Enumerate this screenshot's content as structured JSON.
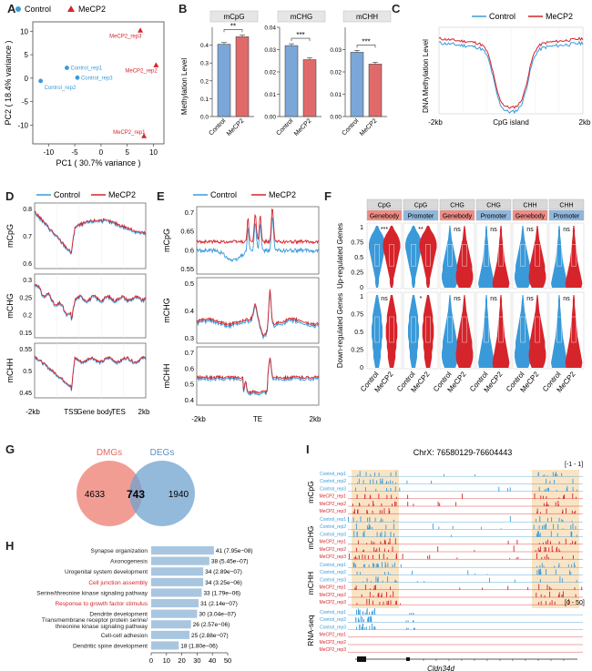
{
  "labels": {
    "A": "A",
    "B": "B",
    "C": "C",
    "D": "D",
    "E": "E",
    "F": "F",
    "G": "G",
    "H": "H",
    "I": "I"
  },
  "colors": {
    "control": "#3a9ad9",
    "mecp2": "#d6242b",
    "bar_blue": "#7ba7d8",
    "bar_red": "#e06a6a",
    "hbar": "#a9c6e0"
  },
  "panelA": {
    "legend": [
      "Control",
      "MeCP2"
    ],
    "xlabel": "PC1 ( 30.7% variance )",
    "ylabel": "PC2 ( 18.4% variance )",
    "xticks": [
      "-10",
      "-5",
      "0",
      "5",
      "10"
    ],
    "yticks": [
      "10",
      "5",
      "0",
      "-5",
      "-10"
    ],
    "points": [
      {
        "label": "Control_rep1",
        "pc1": -6.5,
        "pc2": 2.2,
        "group": "control"
      },
      {
        "label": "Control_rep2",
        "pc1": -11.5,
        "pc2": -0.6,
        "group": "control"
      },
      {
        "label": "Control_rep3",
        "pc1": -4.5,
        "pc2": 0.1,
        "group": "control"
      },
      {
        "label": "MeCP2_rep1",
        "pc1": 8.2,
        "pc2": -12.3,
        "group": "mecp2"
      },
      {
        "label": "MeCP2_rep2",
        "pc1": 10.5,
        "pc2": 2.8,
        "group": "mecp2"
      },
      {
        "label": "MeCP2_rep3",
        "pc1": 7.5,
        "pc2": 10.2,
        "group": "mecp2"
      }
    ]
  },
  "panelB": {
    "ylabel": "Methylation Level",
    "charts": [
      {
        "title": "mCpG",
        "ticks": [
          "0.0",
          "0.1",
          "0.2",
          "0.3",
          "0.4"
        ],
        "ymax": 0.5,
        "values": [
          0.405,
          0.447
        ],
        "sig": "**"
      },
      {
        "title": "mCHG",
        "ticks": [
          "0.00",
          "0.01",
          "0.02",
          "0.03",
          "0.04"
        ],
        "ymax": 0.04,
        "values": [
          0.0318,
          0.0255
        ],
        "sig": "***"
      },
      {
        "title": "mCHH",
        "ticks": [
          "0.00",
          "0.01",
          "0.02",
          "0.03"
        ],
        "ymax": 0.04,
        "values": [
          0.0288,
          0.0235
        ],
        "sig": "***"
      }
    ],
    "categories": [
      "Control",
      "MeCP2"
    ]
  },
  "panelC": {
    "legend": [
      "Control",
      "MeCP2"
    ],
    "ylabel": "DNA Methylation Level",
    "xlabel": "CpG island",
    "xleft": "-2kb",
    "xright": "2kb"
  },
  "panelD": {
    "legend": [
      "Control",
      "MeCP2"
    ],
    "rows": [
      "mCpG",
      "mCHG",
      "mCHH"
    ],
    "yticks": [
      [
        "0.8",
        "0.7",
        "0.6"
      ],
      [
        "0.3",
        "0.25",
        "0.2",
        "0.15"
      ],
      [
        "0.55",
        "0.5",
        "0.45"
      ]
    ],
    "xlabels": [
      "-2kb",
      "TSS",
      "Gene body",
      "TES",
      "2kb"
    ]
  },
  "panelE": {
    "legend": [
      "Control",
      "MeCP2"
    ],
    "rows": [
      "mCpG",
      "mCHG",
      "mCHH"
    ],
    "yticks": [
      [
        "0.7",
        "0.65",
        "0.6",
        "0.55"
      ],
      [
        "0.5",
        "0.4",
        "0.3"
      ],
      [
        "0.7",
        "0.6",
        "0.5",
        "0.4"
      ]
    ],
    "xlabels": [
      "-2kb",
      "TE",
      "2kb"
    ]
  },
  "panelF": {
    "header_top": [
      "CpG",
      "CpG",
      "CHG",
      "CHG",
      "CHH",
      "CHH"
    ],
    "header_bottom": [
      "Genebody",
      "Promoter",
      "Genebody",
      "Promoter",
      "Genebody",
      "Promoter"
    ],
    "row_labels": [
      "Up-regulated Genes",
      "Down-regulated Genes"
    ],
    "yticks": [
      "1",
      "0.75",
      "0.5",
      "0.25",
      "0"
    ],
    "sig_up": [
      "***",
      "**",
      "ns",
      "ns",
      "ns",
      "ns"
    ],
    "sig_down": [
      "ns",
      "*",
      "ns",
      "ns",
      "ns",
      "ns"
    ],
    "xcats": [
      "Control",
      "MeCP2"
    ]
  },
  "panelG": {
    "left_label": "DMGs",
    "right_label": "DEGs",
    "left_only": "4633",
    "overlap": "743",
    "right_only": "1940"
  },
  "panelH": {
    "terms": [
      {
        "term": "Synapse organization",
        "value": 41,
        "pval": "41 (7.95e−08)",
        "red": false
      },
      {
        "term": "Axonogenesis",
        "value": 38,
        "pval": "38 (5.45e−07)",
        "red": false
      },
      {
        "term": "Urogenital system development",
        "value": 34,
        "pval": "34 (2.89e−07)",
        "red": false
      },
      {
        "term": "Cell junction assembly",
        "value": 34,
        "pval": "34 (3.25e−06)",
        "red": true
      },
      {
        "term": "Serine/threonine kinase signaling pathway",
        "value": 33,
        "pval": "33 (1.79e−06)",
        "red": false
      },
      {
        "term": "Response to growth factor stimulus",
        "value": 31,
        "pval": "31 (2.14e−07)",
        "red": true
      },
      {
        "term": "Dendrite development",
        "value": 30,
        "pval": "30 (3.04e−07)",
        "red": false
      },
      {
        "term": "Transmembrane receptor protein serine/ threonine kinase signaling pathway",
        "value": 26,
        "pval": "26 (2.57e−06)",
        "red": false
      },
      {
        "term": "Cell-cell adhesion",
        "value": 25,
        "pval": "25 (2.88e−07)",
        "red": false
      },
      {
        "term": "Dendritic spine development",
        "value": 18,
        "pval": "18 (1.80e−06)",
        "red": false
      }
    ],
    "xticks": [
      "0",
      "10",
      "20",
      "30",
      "40",
      "50"
    ]
  },
  "panelI": {
    "title": "ChrX: 76580129-76604443",
    "range1": "[-1 - 1]",
    "range2": "[0 - 50]",
    "groups": [
      "mCpG",
      "mCHG",
      "mCHH",
      "RNA-seq"
    ],
    "tracks": [
      "Control_rep1",
      "Control_rep2",
      "Control_rep3",
      "MeCP2_rep1",
      "MeCP2_rep2",
      "MeCP2_rep3"
    ],
    "gene": "Cldn34d"
  }
}
